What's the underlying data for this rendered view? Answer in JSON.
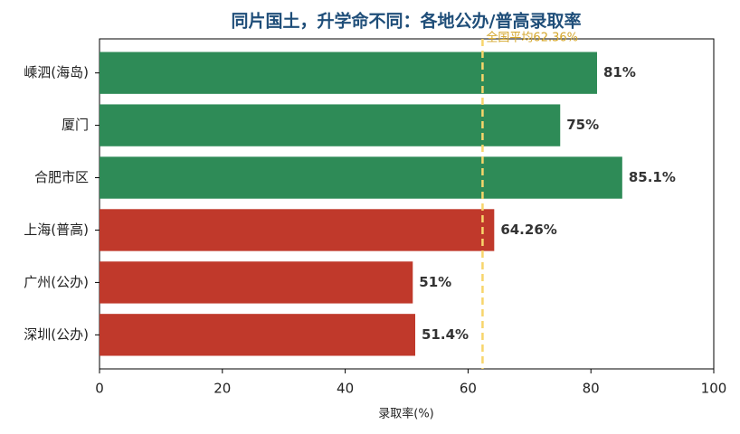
{
  "chart_data": {
    "type": "barh",
    "title": "同片国土，升学命不同：各地公办/普高录取率",
    "x_label": "录取率(%)",
    "categories": [
      "嵊泗(海岛)",
      "厦门",
      "合肥市区",
      "上海(普高)",
      "广州(公办)",
      "深圳(公办)"
    ],
    "values": [
      81,
      75,
      85.1,
      64.26,
      51,
      51.4
    ],
    "value_labels": [
      "81%",
      "75%",
      "85.1%",
      "64.26%",
      "51%",
      "51.4%"
    ],
    "colors": [
      "#2e8b57",
      "#2e8b57",
      "#2e8b57",
      "#c0392b",
      "#c0392b",
      "#c0392b"
    ],
    "xlim": [
      0,
      100
    ],
    "xticks": [
      0,
      20,
      40,
      60,
      80,
      100
    ],
    "reference_line": {
      "value": 62.36,
      "label": "全国平均62.36%",
      "color": "#f7d56b"
    }
  }
}
